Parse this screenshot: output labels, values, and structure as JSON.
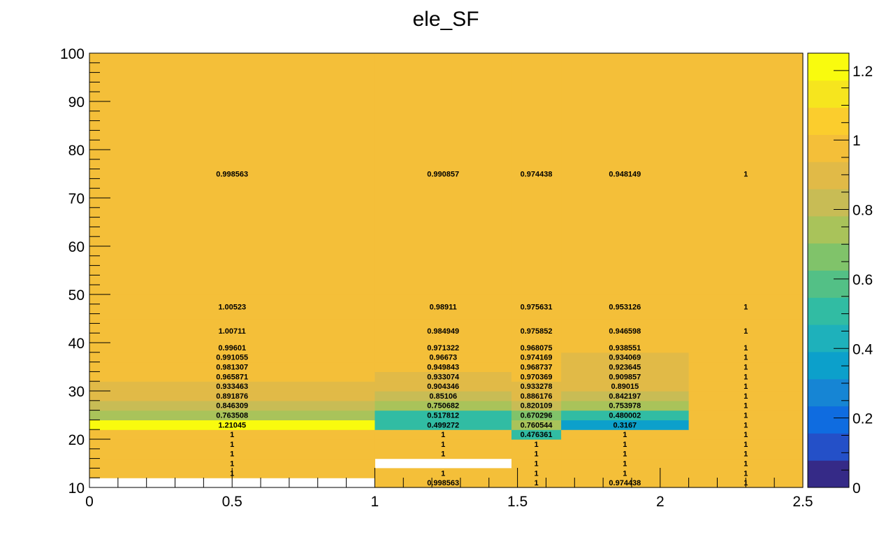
{
  "chart_data": {
    "type": "heatmap",
    "title": "ele_SF",
    "xlabel": "",
    "ylabel": "",
    "xlim": [
      0,
      2.5
    ],
    "ylim": [
      10,
      100
    ],
    "x_edges": [
      0,
      1.0,
      1.479,
      1.653,
      2.1,
      2.5
    ],
    "y_edges": [
      10,
      12,
      14,
      16,
      18,
      20,
      22,
      24,
      26,
      28,
      30,
      32,
      34,
      36,
      38,
      40,
      45,
      50,
      100
    ],
    "x_ticks": [
      "0",
      "0.5",
      "1",
      "1.5",
      "2",
      "2.5"
    ],
    "x_tick_values": [
      0,
      0.5,
      1,
      1.5,
      2,
      2.5
    ],
    "y_ticks": [
      "10",
      "20",
      "30",
      "40",
      "50",
      "60",
      "70",
      "80",
      "90",
      "100"
    ],
    "y_tick_values": [
      10,
      20,
      30,
      40,
      50,
      60,
      70,
      80,
      90,
      100
    ],
    "z_range": [
      0,
      1.25
    ],
    "colorbar_ticks": [
      "0",
      "0.2",
      "0.4",
      "0.6",
      "0.8",
      "1",
      "1.2"
    ],
    "colorbar_tick_values": [
      0,
      0.2,
      0.4,
      0.6,
      0.8,
      1.0,
      1.2
    ],
    "values": [
      [
        null,
        "0.998563",
        "1",
        "0.974438",
        "1"
      ],
      [
        "1",
        "1",
        "1",
        "1",
        "1"
      ],
      [
        "1",
        null,
        "1",
        "1",
        "1"
      ],
      [
        "1",
        "1",
        "1",
        "1",
        "1"
      ],
      [
        "1",
        "1",
        "1",
        "1",
        "1"
      ],
      [
        "1",
        "1",
        "0.476361",
        "1",
        "1"
      ],
      [
        "1.21045",
        "0.499272",
        "0.760544",
        "0.3167",
        "1"
      ],
      [
        "0.763508",
        "0.517812",
        "0.670296",
        "0.480002",
        "1"
      ],
      [
        "0.846309",
        "0.750682",
        "0.820109",
        "0.753978",
        "1"
      ],
      [
        "0.891876",
        "0.85106",
        "0.886176",
        "0.842197",
        "1"
      ],
      [
        "0.933463",
        "0.904346",
        "0.933278",
        "0.89015",
        "1"
      ],
      [
        "0.965871",
        "0.933074",
        "0.970369",
        "0.909857",
        "1"
      ],
      [
        "0.981307",
        "0.949843",
        "0.968737",
        "0.923645",
        "1"
      ],
      [
        "0.991055",
        "0.96673",
        "0.974169",
        "0.934069",
        "1"
      ],
      [
        "0.99601",
        "0.971322",
        "0.968075",
        "0.938551",
        "1"
      ],
      [
        "1.00711",
        "0.984949",
        "0.975852",
        "0.946598",
        "1"
      ],
      [
        "1.00523",
        "0.98911",
        "0.975631",
        "0.953126",
        "1"
      ],
      [
        "0.998563",
        "0.990857",
        "0.974438",
        "0.948149",
        "1"
      ]
    ],
    "colors": {
      "palette": [
        "#352a87",
        "#2450c8",
        "#0f6ce0",
        "#1685d4",
        "#0ca0cb",
        "#1eb1bb",
        "#31bca3",
        "#53c086",
        "#80c36a",
        "#a9c35a",
        "#c8bc55",
        "#e1ba47",
        "#f4bf39",
        "#fbcd2d",
        "#f6e51e",
        "#f9fb0e"
      ],
      "axis": "#000000",
      "background": "#ffffff"
    }
  }
}
